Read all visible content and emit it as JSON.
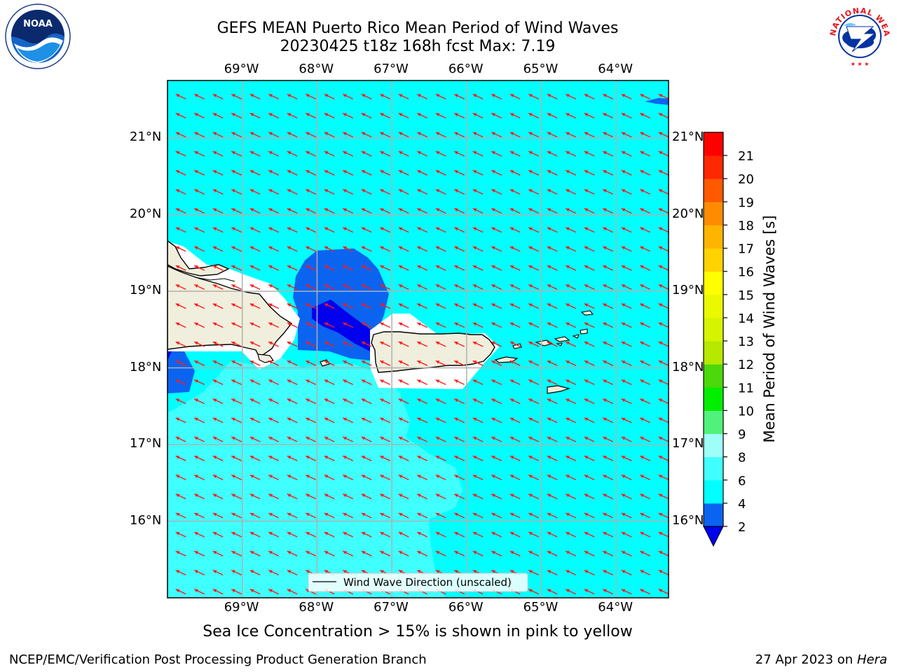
{
  "title": {
    "line1": "GEFS MEAN Puerto Rico Mean Period of Wind Waves",
    "line2": "20230425 t18z 168h fcst   Max: 7.19"
  },
  "axes": {
    "lon_labels": [
      "69°W",
      "68°W",
      "67°W",
      "66°W",
      "65°W",
      "64°W"
    ],
    "lat_labels": [
      "21°N",
      "20°N",
      "19°N",
      "18°N",
      "17°N",
      "16°N"
    ]
  },
  "legend": {
    "label": "Wind Wave Direction (unscaled)"
  },
  "colorbar": {
    "label": "Mean Period of Wind Waves [s]",
    "ticks": [
      "2",
      "4",
      "6",
      "8",
      "9",
      "10",
      "11",
      "12",
      "13",
      "14",
      "15",
      "16",
      "17",
      "18",
      "19",
      "20",
      "21"
    ],
    "colors": [
      "#0a64f0",
      "#00ffff",
      "#40ffff",
      "#9ffff8",
      "#50f27c",
      "#00ee00",
      "#4cd80a",
      "#b6e800",
      "#d6f400",
      "#eaf800",
      "#ffff00",
      "#ffd200",
      "#ffb400",
      "#ff8c00",
      "#ff5a00",
      "#ff2800",
      "#ff0000"
    ],
    "under_color": "#0000ee"
  },
  "subtitle": "Sea Ice Concentration > 15% is shown in pink to yellow",
  "footer": {
    "left": "NCEP/EMC/Verification Post Processing Product Generation Branch",
    "date": "27 Apr 2023 on ",
    "machine": "Hera"
  },
  "logos": {
    "left": "NOAA",
    "right": "NATIONAL WEATHER SERVICE"
  },
  "map_data": {
    "lon_range": [
      -70.0,
      -63.3
    ],
    "lat_range": [
      15.0,
      21.75
    ],
    "wind_direction_vector": [
      -0.9,
      0.42
    ]
  }
}
